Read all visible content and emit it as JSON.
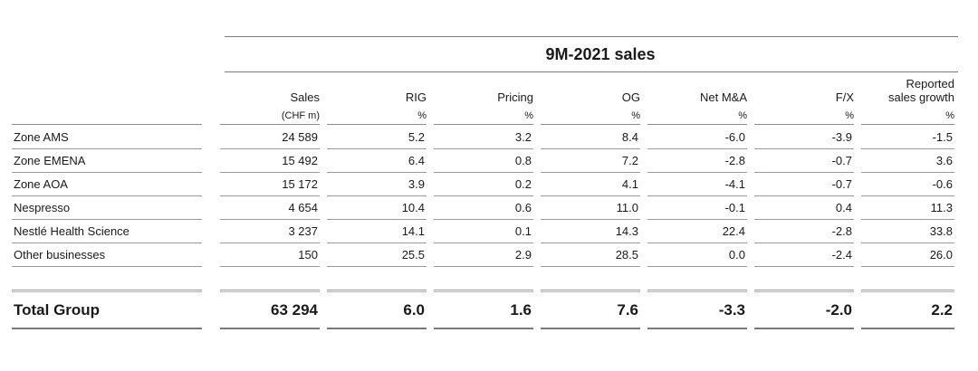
{
  "title": "9M-2021 sales",
  "columns": [
    {
      "name": "Sales",
      "unit": "(CHF m)"
    },
    {
      "name": "RIG",
      "unit": "%"
    },
    {
      "name": "Pricing",
      "unit": "%"
    },
    {
      "name": "OG",
      "unit": "%"
    },
    {
      "name": "Net M&A",
      "unit": "%"
    },
    {
      "name": "F/X",
      "unit": "%"
    },
    {
      "name": "Reported sales growth",
      "name_line1": "Reported",
      "name_line2": "sales growth",
      "unit": "%"
    }
  ],
  "rows": [
    {
      "label": "Zone AMS",
      "values": [
        "24 589",
        "5.2",
        "3.2",
        "8.4",
        "-6.0",
        "-3.9",
        "-1.5"
      ]
    },
    {
      "label": "Zone EMENA",
      "values": [
        "15 492",
        "6.4",
        "0.8",
        "7.2",
        "-2.8",
        "-0.7",
        "3.6"
      ]
    },
    {
      "label": "Zone AOA",
      "values": [
        "15 172",
        "3.9",
        "0.2",
        "4.1",
        "-4.1",
        "-0.7",
        "-0.6"
      ]
    },
    {
      "label": "Nespresso",
      "values": [
        "4 654",
        "10.4",
        "0.6",
        "11.0",
        "-0.1",
        "0.4",
        "11.3"
      ]
    },
    {
      "label": "Nestlé Health Science",
      "values": [
        "3 237",
        "14.1",
        "0.1",
        "14.3",
        "22.4",
        "-2.8",
        "33.8"
      ]
    },
    {
      "label": "Other businesses",
      "values": [
        "150",
        "25.5",
        "2.9",
        "28.5",
        "0.0",
        "-2.4",
        "26.0"
      ]
    }
  ],
  "total": {
    "label": "Total Group",
    "values": [
      "63 294",
      "6.0",
      "1.6",
      "7.6",
      "-3.3",
      "-2.0",
      "2.2"
    ]
  }
}
